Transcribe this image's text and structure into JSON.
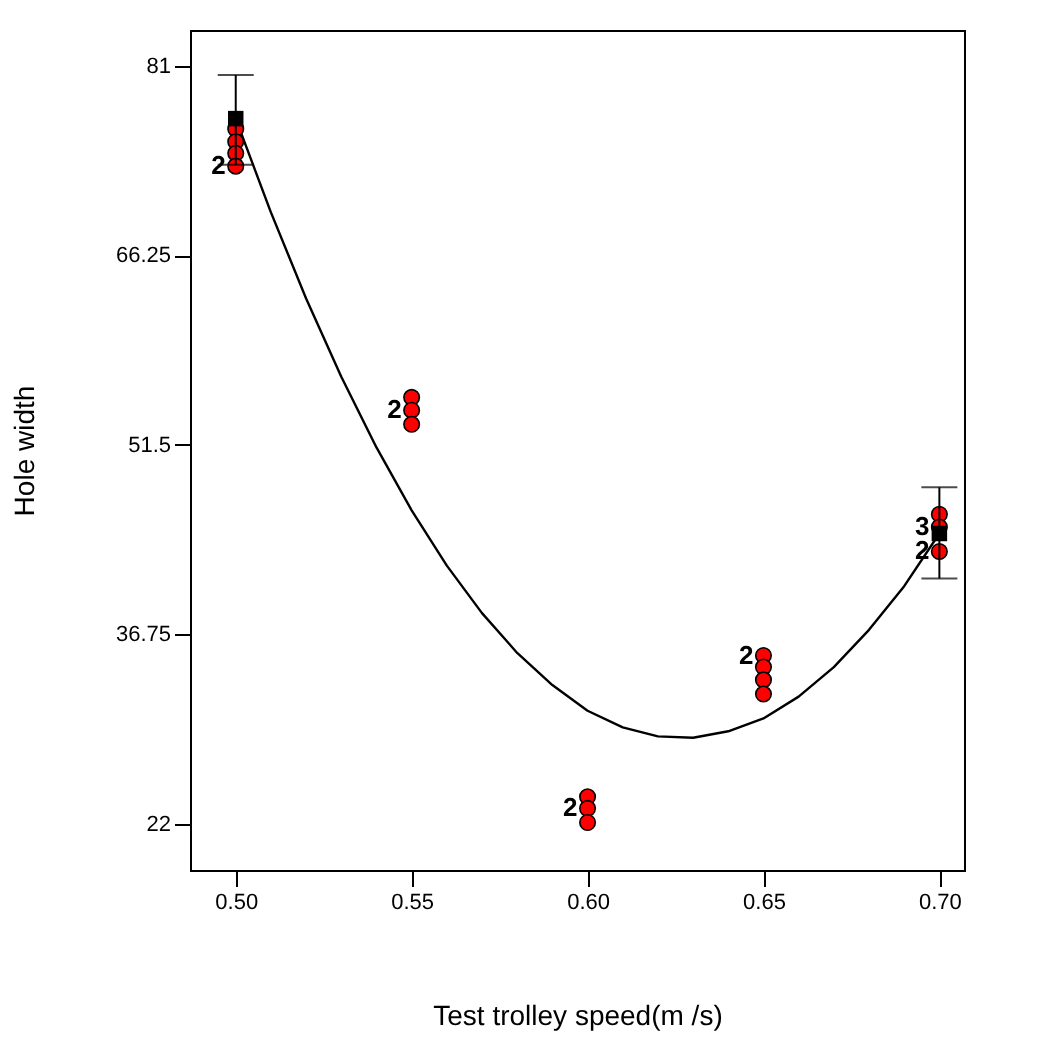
{
  "chart_data": {
    "type": "scatter",
    "xlabel": "Test trolley speed(m /s)",
    "ylabel": "Hole width",
    "xlim": [
      0.487,
      0.707
    ],
    "ylim": [
      18.4,
      83.8
    ],
    "xticks": [
      {
        "value": 0.5,
        "label": "0.50"
      },
      {
        "value": 0.55,
        "label": "0.55"
      },
      {
        "value": 0.6,
        "label": "0.60"
      },
      {
        "value": 0.65,
        "label": "0.65"
      },
      {
        "value": 0.7,
        "label": "0.70"
      }
    ],
    "yticks": [
      {
        "value": 22,
        "label": "22"
      },
      {
        "value": 36.75,
        "label": "36.75"
      },
      {
        "value": 51.5,
        "label": "51.5"
      },
      {
        "value": 66.25,
        "label": "66.25"
      },
      {
        "value": 81,
        "label": "81"
      }
    ],
    "series": [
      {
        "type": "line",
        "color": "#000000",
        "marker": "none",
        "x": [
          0.5,
          0.51,
          0.52,
          0.53,
          0.54,
          0.55,
          0.56,
          0.57,
          0.58,
          0.59,
          0.6,
          0.61,
          0.62,
          0.63,
          0.64,
          0.65,
          0.66,
          0.67,
          0.68,
          0.69,
          0.7
        ],
        "values": [
          76.9,
          69.6,
          62.9,
          56.8,
          51.3,
          46.4,
          42.1,
          38.4,
          35.3,
          32.8,
          30.8,
          29.5,
          28.8,
          28.7,
          29.2,
          30.2,
          31.9,
          34.2,
          37.1,
          40.5,
          44.6
        ]
      },
      {
        "color": "#ff0000",
        "marker": "circle",
        "x": [
          0.5,
          0.5,
          0.5,
          0.5,
          0.55,
          0.55,
          0.55,
          0.6,
          0.6,
          0.6,
          0.65,
          0.65,
          0.65,
          0.65,
          0.7,
          0.7,
          0.7
        ],
        "values": [
          76.1,
          75.1,
          74.2,
          73.2,
          55.2,
          54.2,
          53.1,
          24.1,
          23.2,
          22.1,
          35.1,
          34.2,
          33.2,
          32.1,
          46.1,
          45.1,
          43.2
        ]
      },
      {
        "color": "#000000",
        "marker": "square",
        "x": [
          0.5,
          0.7
        ],
        "values": [
          76.9,
          44.6
        ],
        "errors": [
          [
            73.3,
            80.3
          ],
          [
            41.1,
            48.2
          ]
        ]
      }
    ],
    "annotations": [
      {
        "text": "2",
        "x": 0.5,
        "y": 73.2
      },
      {
        "text": "2",
        "x": 0.55,
        "y": 54.2
      },
      {
        "text": "2",
        "x": 0.6,
        "y": 23.2
      },
      {
        "text": "2",
        "x": 0.65,
        "y": 35.1
      },
      {
        "text": "3",
        "x": 0.7,
        "y": 45.1
      },
      {
        "text": "2",
        "x": 0.7,
        "y": 43.2
      }
    ]
  }
}
